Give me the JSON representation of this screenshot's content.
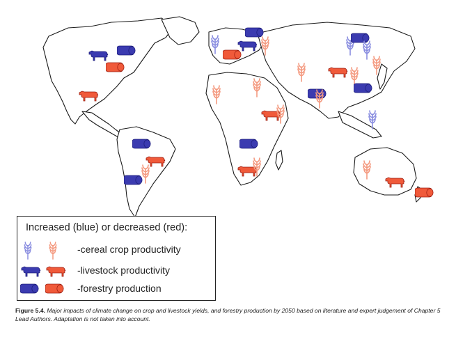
{
  "legend": {
    "title": "Increased (blue) or decreased (red):",
    "items": [
      {
        "label": "-cereal crop productivity",
        "icon": "wheat-icon"
      },
      {
        "label": "-livestock productivity",
        "icon": "cow-icon"
      },
      {
        "label": "-forestry production",
        "icon": "log-bundle-icon"
      }
    ]
  },
  "caption": {
    "figure_label": "Figure 5.4.",
    "text": "Major impacts of climate change on crop and livestock yields, and forestry production by 2050 based on literature and expert judgement of Chapter 5 Lead Authors. Adaptation is not taken into account."
  },
  "colors": {
    "increase_fill": "#3b3bb0",
    "increase_dark": "#1d1d7a",
    "decrease_fill": "#f05a3a",
    "decrease_dark": "#9a1c10",
    "cereal_increase": "#8a8ee0",
    "cereal_decrease": "#f49a80"
  }
}
